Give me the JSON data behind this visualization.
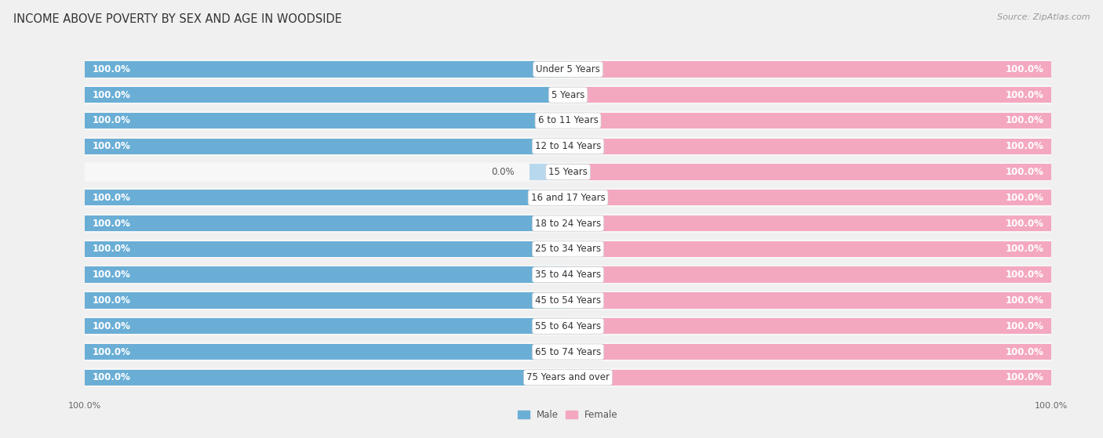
{
  "title": "INCOME ABOVE POVERTY BY SEX AND AGE IN WOODSIDE",
  "source": "Source: ZipAtlas.com",
  "categories": [
    "Under 5 Years",
    "5 Years",
    "6 to 11 Years",
    "12 to 14 Years",
    "15 Years",
    "16 and 17 Years",
    "18 to 24 Years",
    "25 to 34 Years",
    "35 to 44 Years",
    "45 to 54 Years",
    "55 to 64 Years",
    "65 to 74 Years",
    "75 Years and over"
  ],
  "male_values": [
    100.0,
    100.0,
    100.0,
    100.0,
    0.0,
    100.0,
    100.0,
    100.0,
    100.0,
    100.0,
    100.0,
    100.0,
    100.0
  ],
  "female_values": [
    100.0,
    100.0,
    100.0,
    100.0,
    100.0,
    100.0,
    100.0,
    100.0,
    100.0,
    100.0,
    100.0,
    100.0,
    100.0
  ],
  "male_color": "#6aaed6",
  "male_color_light": "#b8d8ee",
  "female_color": "#f4a8c0",
  "background_color": "#f0f0f0",
  "row_bg_color": "#e8e8e8",
  "bar_height": 0.62,
  "title_fontsize": 10.5,
  "label_fontsize": 8.5,
  "value_fontsize": 8.5,
  "tick_fontsize": 8,
  "source_fontsize": 8
}
